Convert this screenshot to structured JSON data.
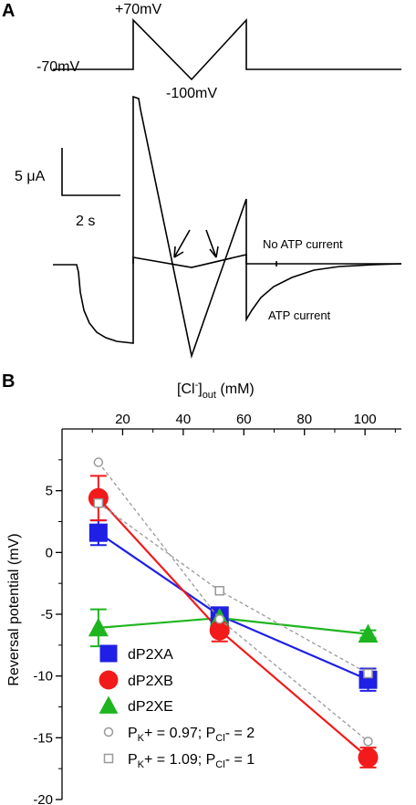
{
  "panel_a": {
    "label": "A",
    "protocol": {
      "v_plus": "+70mV",
      "v_hold": "-70mV",
      "v_min": "-100mV"
    },
    "scale_bar": {
      "current": "5 μA",
      "time": "2 s"
    },
    "trace_labels": {
      "no_atp": "No ATP current",
      "atp": "ATP current"
    }
  },
  "chart_data": {
    "type": "line",
    "panel_label": "B",
    "title": "",
    "xlabel": "[Cl⁻]out (mM)",
    "xlabel_main": "[Cl",
    "xlabel_sup": "-",
    "xlabel_close": "]",
    "xlabel_sub": "out",
    "xlabel_unit": " (mM)",
    "ylabel": "Reversal potential (mV)",
    "xlim": [
      0,
      112
    ],
    "ylim": [
      -20,
      10
    ],
    "x_ticks": [
      20,
      40,
      60,
      80,
      100
    ],
    "y_ticks": [
      5,
      0,
      -5,
      -10,
      -15,
      -20
    ],
    "x_axis_position": "top",
    "grid": false,
    "legend_position": "bottom-left",
    "series": [
      {
        "name": "dP2XA",
        "marker": "square",
        "color": "#1f1fe6",
        "line_color": "#1f1fe6",
        "x": [
          12,
          52,
          101
        ],
        "y": [
          1.6,
          -5.1,
          -10.3
        ],
        "err": [
          1.0,
          0.5,
          0.9
        ]
      },
      {
        "name": "dP2XB",
        "marker": "circle",
        "color": "#f21a1a",
        "line_color": "#f21a1a",
        "x": [
          12,
          52,
          101
        ],
        "y": [
          4.4,
          -6.3,
          -16.6
        ],
        "err": [
          1.8,
          0.9,
          0.8
        ]
      },
      {
        "name": "dP2XE",
        "marker": "triangle",
        "color": "#1fb51f",
        "line_color": "#1fb51f",
        "x": [
          12,
          52,
          101
        ],
        "y": [
          -6.1,
          -5.3,
          -6.6
        ],
        "err": [
          1.5,
          0.4,
          0.3
        ]
      },
      {
        "name": "P",
        "name_sub1": "K",
        "name_mid": "+ = 0.97; P",
        "name_sub2": "Cl",
        "name_end": "- = 2",
        "marker": "open-circle",
        "color": "#999999",
        "line_color": "#999999",
        "dashed": true,
        "x": [
          12,
          52,
          101
        ],
        "y": [
          7.3,
          -5.4,
          -15.3
        ]
      },
      {
        "name": "P",
        "name_sub1": "K",
        "name_mid": "+ = 1.09; P",
        "name_sub2": "Cl",
        "name_end": "- = 1",
        "marker": "open-square",
        "color": "#999999",
        "line_color": "#999999",
        "dashed": true,
        "x": [
          12,
          52,
          101
        ],
        "y": [
          4.0,
          -3.1,
          -9.8
        ]
      }
    ]
  }
}
